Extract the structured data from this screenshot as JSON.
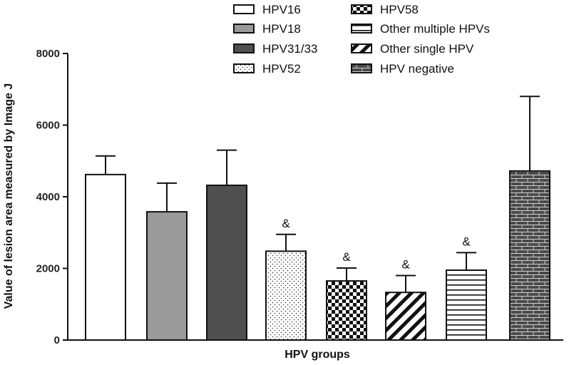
{
  "chart_data": {
    "type": "bar",
    "title": "",
    "xlabel": "HPV groups",
    "ylabel": "Value of lesion area measured by Image J",
    "ylim": [
      0,
      8000
    ],
    "yticks": [
      0,
      2000,
      4000,
      6000,
      8000
    ],
    "categories": [
      "HPV16",
      "HPV18",
      "HPV31/33",
      "HPV52",
      "HPV58",
      "Other single HPV",
      "Other multiple HPVs",
      "HPV negative"
    ],
    "values": [
      4620,
      3580,
      4320,
      2480,
      1650,
      1330,
      1950,
      4720
    ],
    "errors": [
      520,
      800,
      980,
      470,
      360,
      470,
      490,
      2080
    ],
    "annotations": [
      "",
      "",
      "",
      "&",
      "&",
      "&",
      "&",
      ""
    ],
    "fills": [
      "white",
      "lightgray",
      "darkgray",
      "dots",
      "checker",
      "diagonal",
      "horizontal",
      "brick"
    ],
    "legend": [
      {
        "label": "HPV16",
        "fill": "white"
      },
      {
        "label": "HPV18",
        "fill": "lightgray"
      },
      {
        "label": "HPV31/33",
        "fill": "darkgray"
      },
      {
        "label": "HPV52",
        "fill": "dots"
      },
      {
        "label": "HPV58",
        "fill": "checker"
      },
      {
        "label": "Other multiple HPVs",
        "fill": "horizontal"
      },
      {
        "label": "Other single HPV",
        "fill": "diagonal"
      },
      {
        "label": "HPV negative",
        "fill": "brick"
      }
    ],
    "legend_position": "top",
    "grid": false
  },
  "colors": {
    "axis": "#111111",
    "lightgray": "#9a9a9a",
    "darkgray": "#505050",
    "pattern": "#111111"
  }
}
